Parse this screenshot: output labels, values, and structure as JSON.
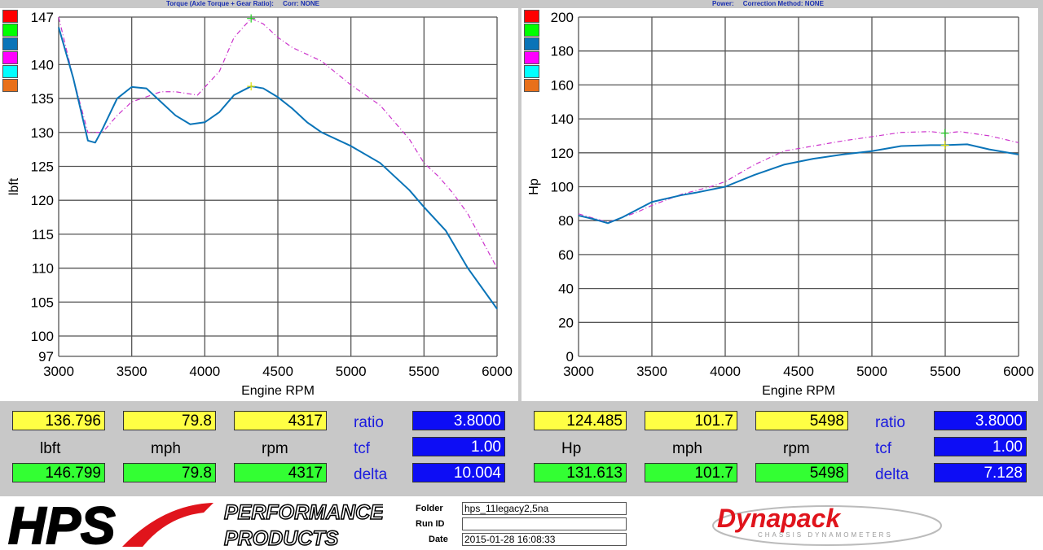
{
  "left": {
    "title": "Torque (Axle Torque + Gear Ratio):",
    "corr": "Corr: NONE",
    "ylabel": "lbft",
    "xlabel": "Engine RPM",
    "readout": {
      "r1": [
        "136.796",
        "79.8",
        "4317"
      ],
      "units": [
        "lbft",
        "mph",
        "rpm"
      ],
      "r2": [
        "146.799",
        "79.8",
        "4317"
      ],
      "ratio_label": "ratio",
      "ratio": "3.8000",
      "tcf_label": "tcf",
      "tcf": "1.00",
      "delta_label": "delta",
      "delta": "10.004"
    }
  },
  "right": {
    "title": "Power:",
    "corr": "Correction Method: NONE",
    "ylabel": "Hp",
    "xlabel": "Engine RPM",
    "readout": {
      "r1": [
        "124.485",
        "101.7",
        "5498"
      ],
      "units": [
        "Hp",
        "mph",
        "rpm"
      ],
      "r2": [
        "131.613",
        "101.7",
        "5498"
      ],
      "ratio_label": "ratio",
      "ratio": "3.8000",
      "tcf_label": "tcf",
      "tcf": "1.00",
      "delta_label": "delta",
      "delta": "7.128"
    }
  },
  "swatches": [
    "#ff0000",
    "#00ff00",
    "#0a74b8",
    "#ff00ff",
    "#00ffff",
    "#e8701a"
  ],
  "footer": {
    "brand": "HPS",
    "brand_sub1": "PERFORMANCE",
    "brand_sub2": "PRODUCTS",
    "folder_label": "Folder",
    "folder": "hps_11legacy2,5na",
    "runid_label": "Run ID",
    "runid": "",
    "date_label": "Date",
    "date": "2015-01-28 16:08:33",
    "dyno_logo": "Dynapack",
    "dyno_sub": "CHASSIS DYNAMOMETERS"
  },
  "chart_data": [
    {
      "type": "line",
      "title": "Torque (Axle Torque + Gear Ratio):",
      "xlabel": "Engine RPM",
      "ylabel": "lbft",
      "xlim": [
        3000,
        6000
      ],
      "ylim": [
        97,
        147
      ],
      "xticks": [
        3000,
        3500,
        4000,
        4500,
        5000,
        5500,
        6000
      ],
      "yticks": [
        97,
        100,
        105,
        110,
        115,
        120,
        125,
        130,
        135,
        140,
        147
      ],
      "grid": true,
      "series": [
        {
          "color": "#0a74b8",
          "style": "solid",
          "x": [
            3000,
            3100,
            3200,
            3250,
            3300,
            3400,
            3500,
            3600,
            3700,
            3800,
            3900,
            4000,
            4100,
            4200,
            4317,
            4400,
            4500,
            4600,
            4700,
            4800,
            5000,
            5200,
            5400,
            5500,
            5650,
            5800,
            6000
          ],
          "y": [
            145.5,
            138,
            128.8,
            128.5,
            130.5,
            135,
            136.7,
            136.5,
            134.5,
            132.5,
            131.2,
            131.5,
            133,
            135.5,
            136.8,
            136.5,
            135.2,
            133.5,
            131.5,
            130,
            128,
            125.5,
            121.5,
            119,
            115.5,
            110,
            104
          ]
        },
        {
          "color": "#cc33cc",
          "style": "dashdot",
          "x": [
            3000,
            3100,
            3200,
            3300,
            3400,
            3500,
            3700,
            3800,
            3950,
            4100,
            4200,
            4317,
            4400,
            4500,
            4600,
            4800,
            5000,
            5200,
            5400,
            5500,
            5600,
            5700,
            5800,
            6000
          ],
          "y": [
            147,
            138,
            130,
            130,
            132.5,
            134.5,
            136,
            136,
            135.5,
            139,
            144,
            146.8,
            146,
            144,
            142.5,
            140.5,
            137,
            134,
            129,
            125.5,
            123.5,
            121,
            118,
            110
          ]
        }
      ],
      "cursor_x": 4317
    },
    {
      "type": "line",
      "title": "Power:",
      "xlabel": "Engine RPM",
      "ylabel": "Hp",
      "xlim": [
        3000,
        6000
      ],
      "ylim": [
        0,
        200
      ],
      "xticks": [
        3000,
        3500,
        4000,
        4500,
        5000,
        5500,
        6000
      ],
      "yticks": [
        0,
        20,
        40,
        60,
        80,
        100,
        120,
        140,
        160,
        180,
        200
      ],
      "grid": true,
      "series": [
        {
          "color": "#0a74b8",
          "style": "solid",
          "x": [
            3000,
            3100,
            3200,
            3300,
            3500,
            3700,
            3800,
            4000,
            4200,
            4400,
            4600,
            4800,
            5000,
            5200,
            5400,
            5498,
            5650,
            5800,
            6000
          ],
          "y": [
            83,
            81,
            78.5,
            82,
            91,
            95,
            96.5,
            100,
            107,
            113,
            116.5,
            119,
            121,
            124,
            124.5,
            124.5,
            125,
            122,
            119
          ]
        },
        {
          "color": "#cc33cc",
          "style": "dashdot",
          "x": [
            3000,
            3200,
            3400,
            3500,
            3700,
            3900,
            4000,
            4200,
            4400,
            4600,
            4800,
            5000,
            5200,
            5400,
            5498,
            5600,
            5800,
            6000
          ],
          "y": [
            84,
            79,
            85,
            89,
            95.5,
            100,
            103,
            113,
            121,
            124,
            127,
            129.5,
            132,
            132.5,
            131.6,
            132.5,
            130,
            126
          ]
        }
      ],
      "cursor_x": 5498
    }
  ]
}
